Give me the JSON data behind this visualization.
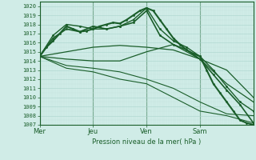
{
  "xlabel": "Pression niveau de la mer( hPa )",
  "bg_color": "#d0ece7",
  "grid_color_major": "#aad4cc",
  "grid_color_minor": "#c4e4de",
  "line_color": "#1a5e2a",
  "ylim": [
    1007,
    1020.5
  ],
  "xlim": [
    0,
    96
  ],
  "yticks": [
    1007,
    1008,
    1009,
    1010,
    1011,
    1012,
    1013,
    1014,
    1015,
    1016,
    1017,
    1018,
    1019,
    1020
  ],
  "day_labels": [
    "Mer",
    "Jeu",
    "Ven",
    "Sam"
  ],
  "day_positions": [
    0,
    24,
    48,
    72
  ],
  "lines": [
    {
      "x": [
        0,
        3,
        6,
        9,
        12,
        15,
        18,
        21,
        24,
        27,
        30,
        33,
        36,
        39,
        42,
        45,
        48,
        51,
        54,
        57,
        60,
        63,
        66,
        69,
        72,
        75,
        78,
        81,
        84,
        87,
        90,
        93,
        96
      ],
      "y": [
        1014.5,
        1015.5,
        1016.2,
        1017.0,
        1017.8,
        1017.5,
        1017.2,
        1017.3,
        1017.5,
        1017.8,
        1018.0,
        1018.2,
        1018.1,
        1018.5,
        1019.0,
        1019.5,
        1019.8,
        1019.5,
        1018.5,
        1017.5,
        1016.5,
        1015.8,
        1015.2,
        1014.8,
        1014.5,
        1013.0,
        1011.5,
        1010.5,
        1009.5,
        1008.5,
        1007.5,
        1007.2,
        1007.0
      ],
      "lw": 1.5,
      "marker": true
    },
    {
      "x": [
        0,
        6,
        12,
        18,
        24,
        30,
        36,
        42,
        48,
        54,
        60,
        66,
        72,
        78,
        84,
        90,
        96
      ],
      "y": [
        1014.5,
        1016.5,
        1017.5,
        1017.2,
        1017.8,
        1017.5,
        1017.8,
        1018.2,
        1019.5,
        1016.8,
        1015.8,
        1015.2,
        1014.2,
        1012.5,
        1010.8,
        1009.2,
        1007.2
      ],
      "lw": 1.2,
      "marker": true
    },
    {
      "x": [
        0,
        6,
        12,
        18,
        24,
        30,
        36,
        42,
        48,
        54,
        60,
        66,
        72,
        78,
        84,
        90,
        96
      ],
      "y": [
        1014.5,
        1016.8,
        1018.0,
        1017.8,
        1017.5,
        1017.5,
        1017.8,
        1018.5,
        1019.8,
        1017.5,
        1016.2,
        1015.5,
        1014.5,
        1013.0,
        1011.2,
        1009.5,
        1008.5
      ],
      "lw": 1.0,
      "marker": true
    },
    {
      "x": [
        0,
        12,
        24,
        36,
        48,
        60,
        72,
        84,
        96
      ],
      "y": [
        1014.5,
        1015.0,
        1015.5,
        1015.7,
        1015.5,
        1015.2,
        1014.2,
        1011.5,
        1009.5
      ],
      "lw": 0.9,
      "marker": false
    },
    {
      "x": [
        0,
        12,
        24,
        36,
        48,
        60,
        72,
        84,
        96
      ],
      "y": [
        1014.5,
        1014.2,
        1014.0,
        1014.0,
        1015.0,
        1015.8,
        1014.2,
        1013.0,
        1010.0
      ],
      "lw": 0.9,
      "marker": false
    },
    {
      "x": [
        0,
        12,
        24,
        36,
        48,
        60,
        72,
        84,
        96
      ],
      "y": [
        1014.5,
        1013.5,
        1013.2,
        1012.8,
        1012.0,
        1011.0,
        1009.5,
        1008.2,
        1008.0
      ],
      "lw": 0.8,
      "marker": false
    },
    {
      "x": [
        0,
        12,
        24,
        36,
        48,
        60,
        72,
        84,
        96
      ],
      "y": [
        1014.5,
        1013.2,
        1012.8,
        1012.0,
        1011.5,
        1010.0,
        1008.5,
        1008.0,
        1007.2
      ],
      "lw": 0.8,
      "marker": false
    }
  ]
}
